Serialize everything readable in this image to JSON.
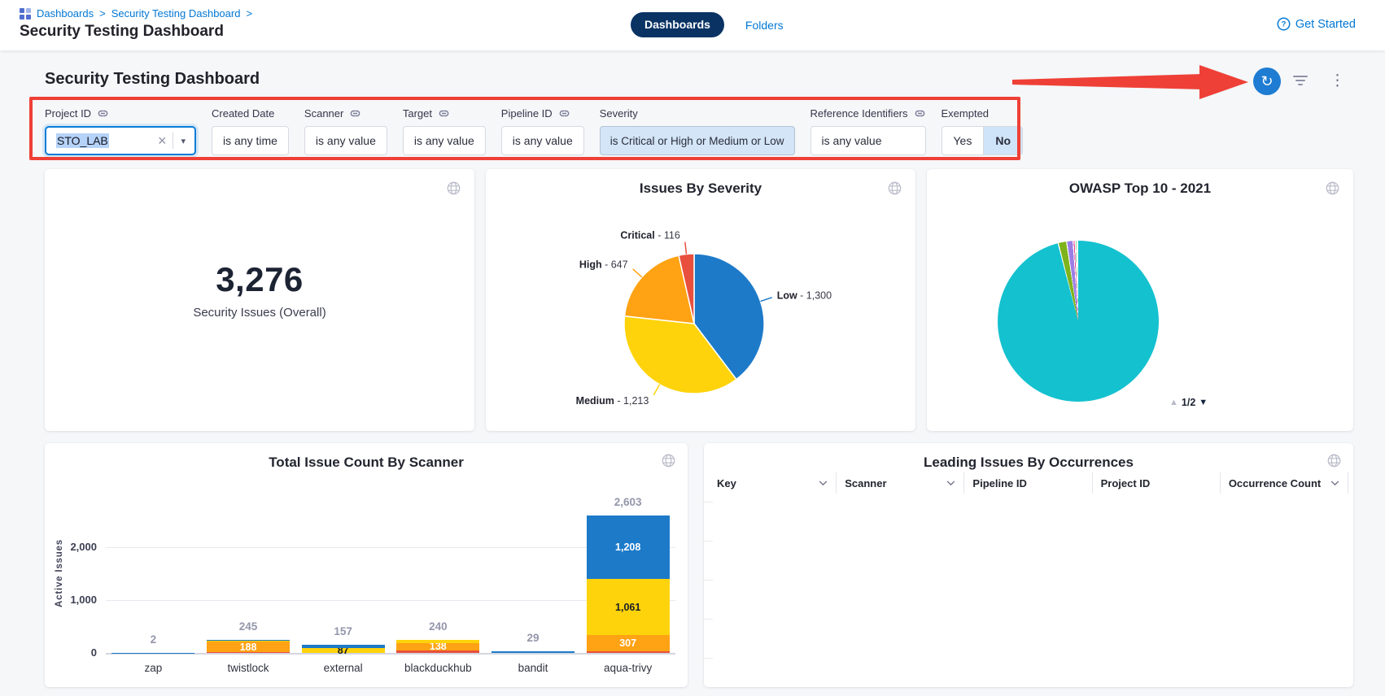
{
  "app": {
    "breadcrumb": {
      "items": [
        "Dashboards",
        "Security Testing Dashboard"
      ],
      "separator": ">"
    },
    "page_title": "Security Testing Dashboard",
    "nav_tabs": {
      "dashboards": "Dashboards",
      "folders": "Folders"
    },
    "help_link": "Get Started"
  },
  "dashboard": {
    "title": "Security Testing Dashboard",
    "filters": [
      {
        "name": "project-id",
        "label": "Project ID",
        "linked": true,
        "type": "select-input",
        "value": "STO_LAB"
      },
      {
        "name": "created-date",
        "label": "Created Date",
        "linked": false,
        "type": "box",
        "value": "is any time"
      },
      {
        "name": "scanner",
        "label": "Scanner",
        "linked": true,
        "type": "box",
        "value": "is any value"
      },
      {
        "name": "target",
        "label": "Target",
        "linked": true,
        "type": "box",
        "value": "is any value"
      },
      {
        "name": "pipeline-id",
        "label": "Pipeline ID",
        "linked": true,
        "type": "box",
        "value": "is any value"
      },
      {
        "name": "severity",
        "label": "Severity",
        "linked": false,
        "type": "chip",
        "value": "is Critical or High or Medium or Low"
      },
      {
        "name": "reference-identifiers",
        "label": "Reference Identifiers",
        "linked": true,
        "type": "box",
        "value": "is any value"
      },
      {
        "name": "exempted",
        "label": "Exempted",
        "linked": false,
        "type": "toggle",
        "options": [
          "Yes",
          "No"
        ],
        "selected": "No"
      }
    ]
  },
  "tiles": {
    "security_issues": {
      "value": "3,276",
      "label": "Security Issues (Overall)"
    }
  },
  "owasp_pager": {
    "up": "▲",
    "label": "1/2",
    "down": "▼"
  },
  "colors": {
    "accent_blue": "#0278d5",
    "nav_pill_navy": "#0a3364",
    "annotation_red": "#ee4036",
    "refresh_button_blue": "#1e7cd2",
    "severity": {
      "Critical": "#e8503d",
      "High": "#ffa213",
      "Medium": "#fed30b",
      "Low": "#1d7ac9"
    },
    "owasp_teal": "#14c1cf"
  },
  "chart_data": [
    {
      "id": "issues_by_severity",
      "type": "pie",
      "title": "Issues By Severity",
      "total": 3276,
      "clockwise_from_top": true,
      "label_format": "{name} - {value}",
      "slices": [
        {
          "name": "Low",
          "value": 1300,
          "display": "1,300",
          "color": "#1d7ac9"
        },
        {
          "name": "Medium",
          "value": 1213,
          "display": "1,213",
          "color": "#fed30b"
        },
        {
          "name": "High",
          "value": 647,
          "display": "647",
          "color": "#ffa213"
        },
        {
          "name": "Critical",
          "value": 116,
          "display": "116",
          "color": "#e8503d"
        }
      ]
    },
    {
      "id": "owasp_top_10_2021",
      "type": "pie",
      "title": "OWASP Top 10 - 2021",
      "note": "slice labels not shown on screen; legend paginated",
      "pager": "1/2",
      "slices": [
        {
          "name": "segment-1",
          "estimated_percent": 96.1,
          "color": "#14c1cf"
        },
        {
          "name": "segment-2",
          "estimated_percent": 1.7,
          "color": "#7fb31c"
        },
        {
          "name": "segment-3",
          "estimated_percent": 1.3,
          "color": "#9b7fe4"
        },
        {
          "name": "segment-4",
          "estimated_percent": 0.4,
          "color": "#f0419c"
        },
        {
          "name": "segment-5",
          "estimated_percent": 0.3,
          "color": "#2dbd52"
        },
        {
          "name": "segment-6",
          "estimated_percent": 0.2,
          "color": "#c8ccd4"
        }
      ]
    },
    {
      "id": "total_issue_count_by_scanner",
      "type": "bar",
      "stacked": true,
      "title": "Total Issue Count By Scanner",
      "ylabel": "Active Issues",
      "ylim": [
        0,
        2700
      ],
      "yticks": [
        {
          "value": 0,
          "label": "0"
        },
        {
          "value": 1000,
          "label": "1,000"
        },
        {
          "value": 2000,
          "label": "2,000"
        }
      ],
      "categories": [
        "zap",
        "twistlock",
        "external",
        "blackduckhub",
        "bandit",
        "aqua-trivy"
      ],
      "severity_colors": {
        "Critical": "#e8503d",
        "High": "#ffa213",
        "Medium": "#fed30b",
        "Low": "#1d7ac9"
      },
      "bars": [
        {
          "category": "zap",
          "total": 2,
          "total_label": "2",
          "segments": [
            {
              "name": "Low",
              "value": 2,
              "estimated": true
            }
          ]
        },
        {
          "category": "twistlock",
          "total": 245,
          "total_label": "245",
          "segments": [
            {
              "name": "Critical",
              "value": 20,
              "estimated": true
            },
            {
              "name": "High",
              "value": 188,
              "label": "188",
              "label_color": "#ffffff"
            },
            {
              "name": "Medium",
              "value": 22,
              "estimated": true
            },
            {
              "name": "Low",
              "value": 15,
              "estimated": true
            }
          ]
        },
        {
          "category": "external",
          "total": 157,
          "total_label": "157",
          "segments": [
            {
              "name": "Medium",
              "value": 87,
              "label": "87",
              "label_color": "#1c1e28"
            },
            {
              "name": "Low",
              "value": 70,
              "estimated": true
            }
          ]
        },
        {
          "category": "blackduckhub",
          "total": 240,
          "total_label": "240",
          "segments": [
            {
              "name": "Critical",
              "value": 50,
              "estimated": true
            },
            {
              "name": "High",
              "value": 138,
              "label": "138",
              "label_color": "#ffffff"
            },
            {
              "name": "Medium",
              "value": 52,
              "estimated": true
            }
          ]
        },
        {
          "category": "bandit",
          "total": 29,
          "total_label": "29",
          "segments": [
            {
              "name": "Low",
              "value": 29,
              "estimated": true
            }
          ]
        },
        {
          "category": "aqua-trivy",
          "total": 2603,
          "total_label": "2,603",
          "segments": [
            {
              "name": "Critical",
              "value": 27,
              "estimated": true
            },
            {
              "name": "High",
              "value": 307,
              "label": "307",
              "label_color": "#ffffff"
            },
            {
              "name": "Medium",
              "value": 1061,
              "label": "1,061",
              "label_color": "#1c1e28"
            },
            {
              "name": "Low",
              "value": 1208,
              "label": "1,208",
              "label_color": "#ffffff"
            }
          ]
        }
      ]
    },
    {
      "id": "leading_issues_by_occurrences",
      "type": "table",
      "title": "Leading Issues By Occurrences",
      "columns": [
        {
          "label": "Key",
          "sortable": true
        },
        {
          "label": "Scanner",
          "sortable": true
        },
        {
          "label": "Pipeline ID",
          "sortable": false
        },
        {
          "label": "Project ID",
          "sortable": false
        },
        {
          "label": "Occurrence Count",
          "sortable": true
        }
      ],
      "rows": []
    }
  ]
}
